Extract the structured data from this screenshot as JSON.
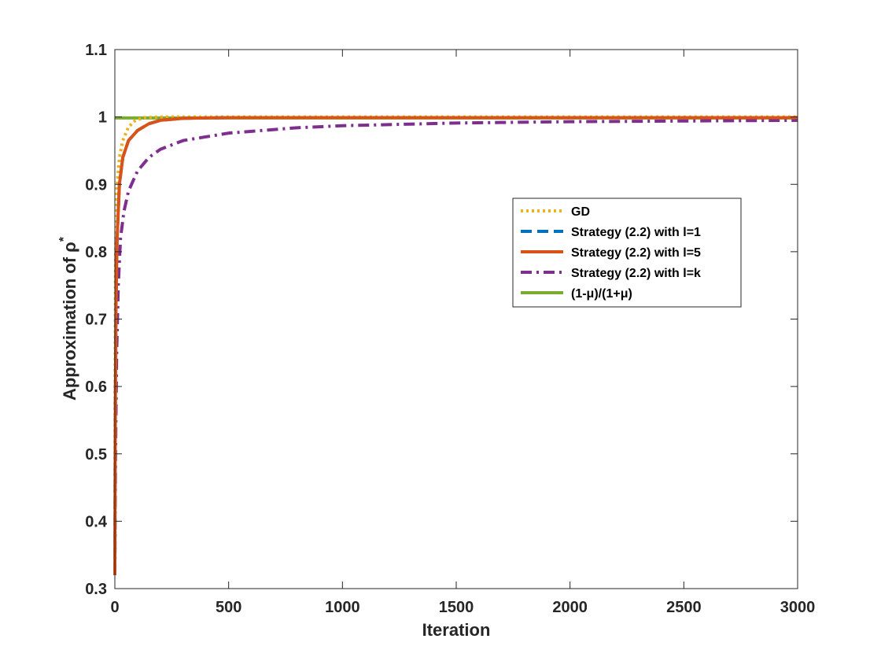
{
  "chart_data": {
    "type": "line",
    "xlabel": "Iteration",
    "ylabel": "Approximation of ρ",
    "ylabel_sup": "*",
    "xlim": [
      0,
      3000
    ],
    "ylim": [
      0.3,
      1.1
    ],
    "xticks": [
      0,
      500,
      1000,
      1500,
      2000,
      2500,
      3000
    ],
    "yticks": [
      0.3,
      0.4,
      0.5,
      0.6,
      0.7,
      0.8,
      0.9,
      1,
      1.1
    ],
    "grid": false,
    "legend_position": "right",
    "series": [
      {
        "name": "GD",
        "color": "#EDB120",
        "style": "dotted",
        "points": [
          [
            0,
            0.32
          ],
          [
            1,
            0.6
          ],
          [
            3,
            0.78
          ],
          [
            6,
            0.86
          ],
          [
            10,
            0.9
          ],
          [
            20,
            0.94
          ],
          [
            35,
            0.965
          ],
          [
            60,
            0.985
          ],
          [
            90,
            0.995
          ],
          [
            130,
            0.999
          ],
          [
            200,
            1.0
          ],
          [
            3000,
            1.0
          ]
        ]
      },
      {
        "name": "Strategy (2.2) with l=1",
        "color": "#0072BD",
        "style": "dashed",
        "points": [
          [
            0,
            0.32
          ],
          [
            2,
            0.55
          ],
          [
            5,
            0.72
          ],
          [
            10,
            0.82
          ],
          [
            20,
            0.9
          ],
          [
            35,
            0.94
          ],
          [
            60,
            0.965
          ],
          [
            100,
            0.98
          ],
          [
            150,
            0.99
          ],
          [
            200,
            0.995
          ],
          [
            300,
            0.998
          ],
          [
            500,
            0.999
          ],
          [
            3000,
            0.999
          ]
        ]
      },
      {
        "name": "Strategy (2.2) with l=5",
        "color": "#D95319",
        "style": "solid",
        "points": [
          [
            0,
            0.32
          ],
          [
            2,
            0.55
          ],
          [
            5,
            0.72
          ],
          [
            10,
            0.82
          ],
          [
            20,
            0.9
          ],
          [
            35,
            0.94
          ],
          [
            60,
            0.965
          ],
          [
            100,
            0.98
          ],
          [
            150,
            0.99
          ],
          [
            200,
            0.995
          ],
          [
            300,
            0.998
          ],
          [
            500,
            0.999
          ],
          [
            3000,
            0.999
          ]
        ]
      },
      {
        "name": "Strategy (2.2) with l=k",
        "color": "#7E2F8E",
        "style": "dashdot",
        "points": [
          [
            0,
            0.32
          ],
          [
            3,
            0.5
          ],
          [
            8,
            0.65
          ],
          [
            15,
            0.75
          ],
          [
            25,
            0.82
          ],
          [
            40,
            0.86
          ],
          [
            60,
            0.89
          ],
          [
            100,
            0.92
          ],
          [
            150,
            0.94
          ],
          [
            200,
            0.952
          ],
          [
            300,
            0.965
          ],
          [
            500,
            0.976
          ],
          [
            800,
            0.984
          ],
          [
            1000,
            0.987
          ],
          [
            1500,
            0.991
          ],
          [
            2000,
            0.993
          ],
          [
            2500,
            0.994
          ],
          [
            3000,
            0.995
          ]
        ]
      },
      {
        "name": "(1-μ)/(1+μ)",
        "color": "#77AC30",
        "style": "solid",
        "points": [
          [
            0,
            0.9985
          ],
          [
            3000,
            0.9985
          ]
        ]
      }
    ]
  }
}
